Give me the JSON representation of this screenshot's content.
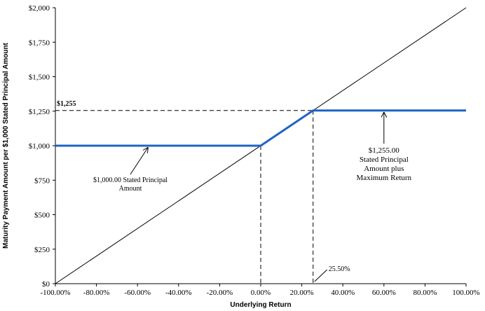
{
  "chart_data": {
    "type": "line",
    "xlabel": "Underlying Return",
    "ylabel": "Maturity Payment Amount per $1,000 Stated Principal Amount",
    "xlim": [
      -100,
      100
    ],
    "ylim": [
      0,
      2000
    ],
    "x_ticks": [
      "-100.00%",
      "-80.00%",
      "-60.00%",
      "-40.00%",
      "-20.00%",
      "0.00%",
      "20.00%",
      "40.00%",
      "60.00%",
      "80.00%",
      "100.00%"
    ],
    "x_tick_values": [
      -100,
      -80,
      -60,
      -40,
      -20,
      0,
      20,
      40,
      60,
      80,
      100
    ],
    "y_ticks": [
      "$0",
      "$250",
      "$500",
      "$750",
      "$1,000",
      "$1,250",
      "$1,500",
      "$1,750",
      "$2,000"
    ],
    "y_tick_values": [
      0,
      250,
      500,
      750,
      1000,
      1250,
      1500,
      1750,
      2000
    ],
    "grid": false,
    "series": [
      {
        "x": [
          -100,
          100
        ],
        "y": [
          0,
          2000
        ],
        "color": "#000000"
      },
      {
        "x": [
          -100,
          0,
          25.5,
          100
        ],
        "y": [
          1000,
          1000,
          1255,
          1255
        ],
        "color": "#1f63c6"
      }
    ],
    "reference_lines": {
      "cap_level": 1255,
      "cap_level_label": "$1,255",
      "cap_return": 25.5,
      "cap_return_label": "25.50%",
      "zero_return": 0
    },
    "annotations": {
      "principal": {
        "lines": [
          "$1,000.00 Stated Principal",
          "Amount"
        ],
        "arrow_to": [
          -55,
          1000
        ]
      },
      "maximum": {
        "lines": [
          "$1,255.00",
          "Stated Principal",
          "Amount plus",
          "Maximum Return"
        ],
        "arrow_to": [
          60,
          1255
        ]
      }
    }
  }
}
